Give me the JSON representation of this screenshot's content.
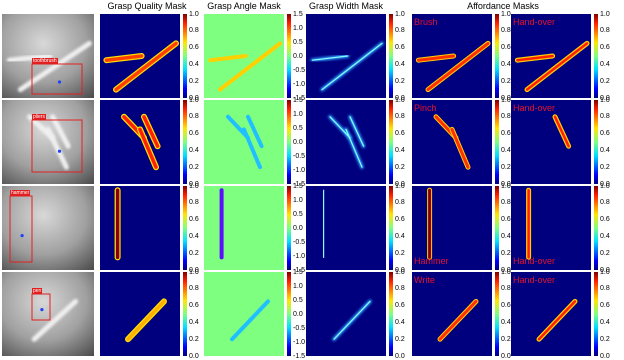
{
  "headers": {
    "quality": "Grasp Quality Mask",
    "angle": "Grasp Angle Mask",
    "width": "Grasp Width Mask",
    "affordance": "Affordance Masks"
  },
  "colorbars": {
    "unit_ticks": [
      "1.0",
      "0.8",
      "0.6",
      "0.4",
      "0.2",
      "0.0"
    ],
    "angle_ticks": [
      "1.5",
      "1.0",
      "0.5",
      "0.0",
      "-0.5",
      "-1.0",
      "-1.5"
    ]
  },
  "rows": [
    {
      "object": "toothbrush",
      "affordance_1": "Brush",
      "affordance_2": "Hand-over"
    },
    {
      "object": "pliers",
      "affordance_1": "Pinch",
      "affordance_2": "Hand-over"
    },
    {
      "object": "hammer",
      "affordance_1": "Hammer",
      "affordance_2": "Hand-over"
    },
    {
      "object": "pen",
      "affordance_1": "Write",
      "affordance_2": "Hand-over"
    }
  ],
  "colors": {
    "mask_background": "#00007f",
    "angle_background": "#7fff80",
    "bbox": "#e02020",
    "affordance_label": "#e8102a"
  }
}
